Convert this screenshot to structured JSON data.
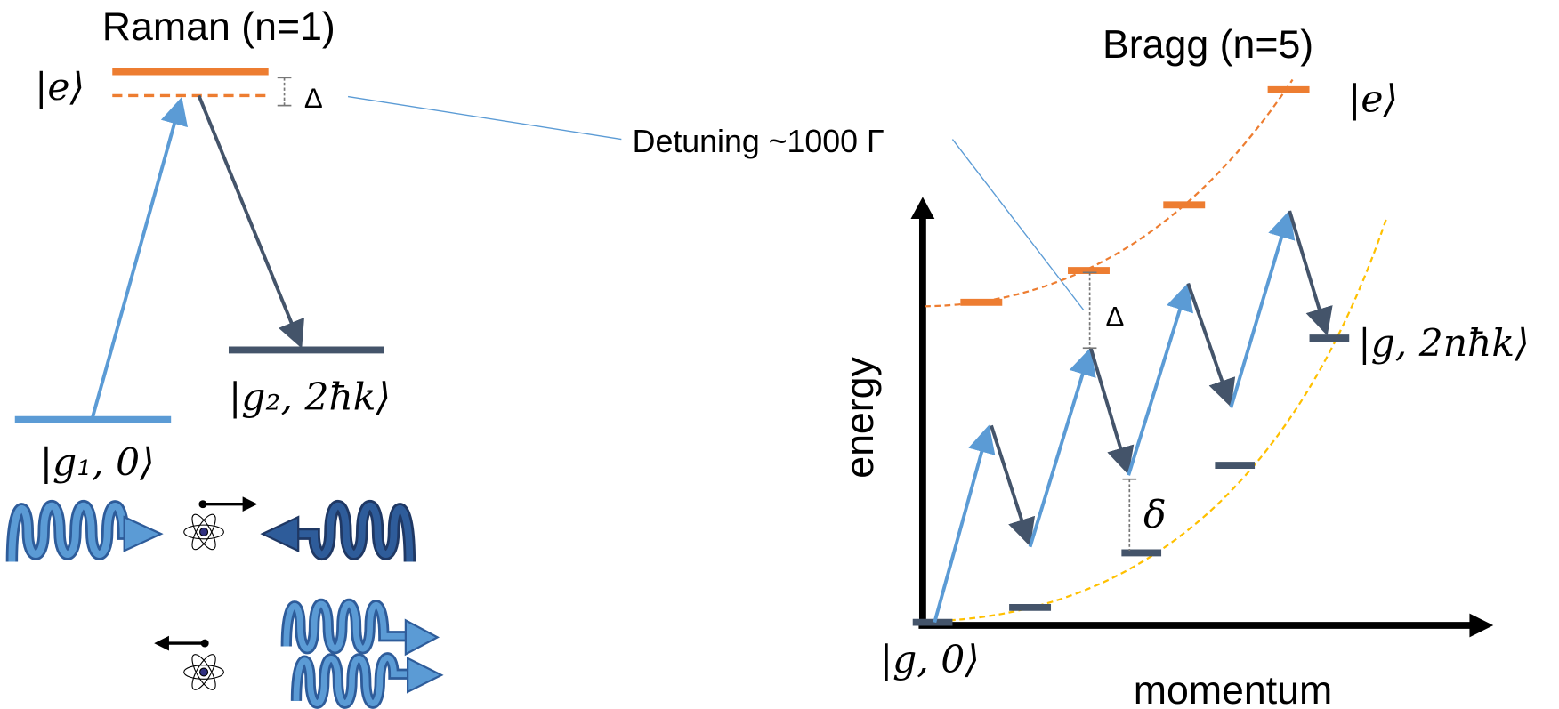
{
  "raman": {
    "title": "Raman (n=1)",
    "excited_label": "|e⟩",
    "detuning_symbol": "Δ",
    "final_label": "|g₂, 2ħk⟩",
    "initial_label": "|g₁, 0⟩"
  },
  "annotation": "Detuning ~1000 Γ",
  "bragg": {
    "title": "Bragg (n=5)",
    "excited_label": "|e⟩",
    "detuning_symbol": "Δ",
    "two_photon_detuning_symbol": "δ",
    "final_label": "|g, 2nħk⟩",
    "initial_label": "|g, 0⟩",
    "y_axis_label": "energy",
    "x_axis_label": "momentum"
  }
}
